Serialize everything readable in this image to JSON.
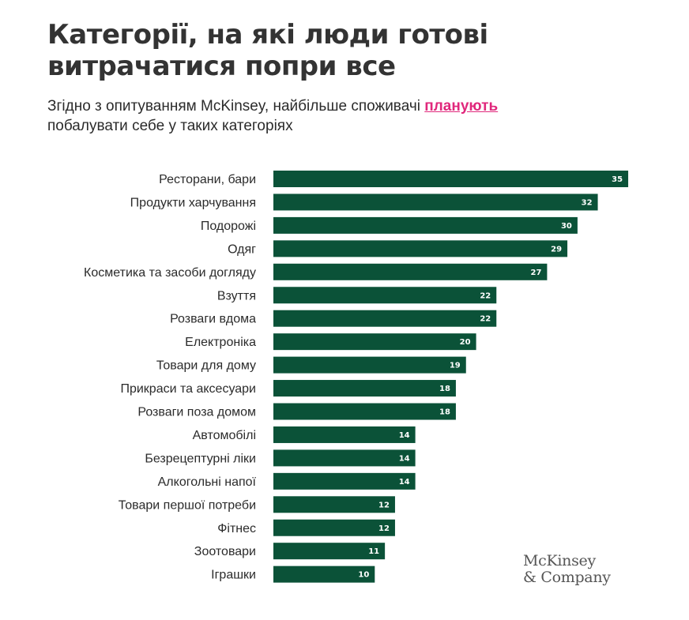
{
  "title_line1": "Категорії, на які люди готові",
  "title_line2": "витрачатися попри все",
  "subtitle": {
    "before": "Згідно з опитуванням McKinsey, найбільше споживачі ",
    "highlight": "планують",
    "after": "побалувати себе у таких категоріях"
  },
  "colors": {
    "bar": "#0b5238",
    "highlight": "#e0287c"
  },
  "logo": {
    "line1": "McKinsey",
    "line2": "& Company"
  },
  "chart_data": {
    "type": "bar",
    "orientation": "horizontal",
    "categories": [
      "Ресторани, бари",
      "Продукти харчування",
      "Подорожі",
      "Одяг",
      "Косметика та засоби догляду",
      "Взуття",
      "Розваги вдома",
      "Електроніка",
      "Товари для дому",
      "Прикраси та аксесуари",
      "Розваги поза домом",
      "Автомобілі",
      "Безрецептурні ліки",
      "Алкогольні напої",
      "Товари першої потреби",
      "Фітнес",
      "Зоотовари",
      "Іграшки"
    ],
    "values": [
      35,
      32,
      30,
      29,
      27,
      22,
      22,
      20,
      19,
      18,
      18,
      14,
      14,
      14,
      12,
      12,
      11,
      10
    ],
    "data_labels": true,
    "grid": false,
    "legend": "none"
  }
}
